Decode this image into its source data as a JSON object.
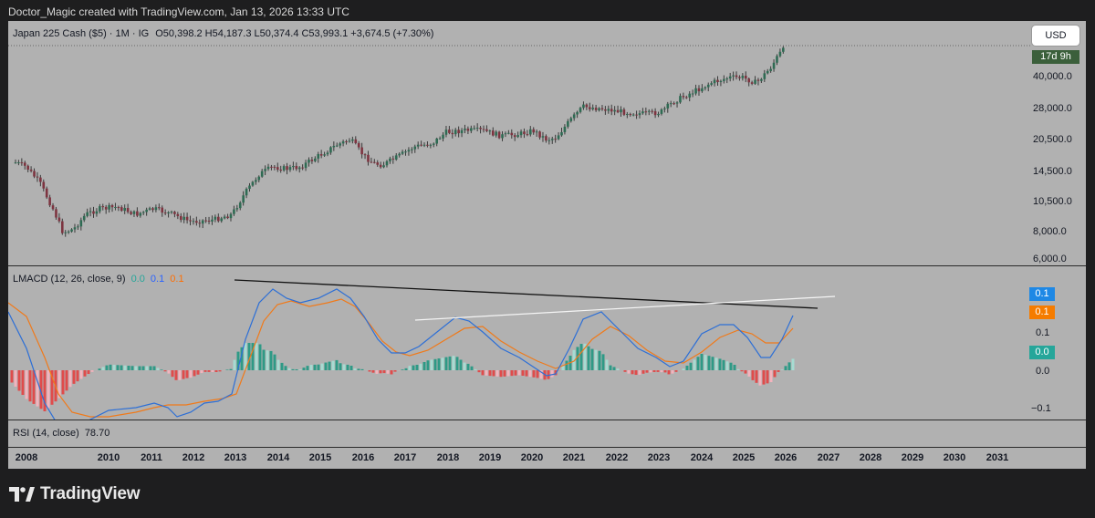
{
  "header": {
    "credit": "Doctor_Magic created with TradingView.com, Jan 13, 2026 13:33 UTC"
  },
  "main_pane": {
    "title": "Japan 225 Cash ($5) · 1M · IG",
    "ohlc": "O50,398.2 H54,187.3 L50,374.4 C53,993.1 +3,674.5 (+7.30%)",
    "currency_button": "USD",
    "countdown": "17d 9h",
    "price_labels": [
      "40,000.0",
      "28,000.0",
      "20,500.0",
      "14,500.0",
      "10,500.0",
      "8,000.0",
      "6,000.0"
    ]
  },
  "lmacd_pane": {
    "label": "LMACD (12, 26, close, 9)",
    "values": [
      "0.0",
      "0.1",
      "0.1"
    ],
    "tags": [
      "0.1",
      "0.1",
      "0.0"
    ],
    "axis": [
      "0.1",
      "0.0",
      "−0.1"
    ]
  },
  "rsi_pane": {
    "label": "RSI (14, close)",
    "value": "78.70"
  },
  "time_axis": [
    "2008",
    "2010",
    "2011",
    "2012",
    "2013",
    "2014",
    "2015",
    "2016",
    "2017",
    "2018",
    "2019",
    "2020",
    "2021",
    "2022",
    "2023",
    "2024",
    "2025",
    "2026",
    "2027",
    "2028",
    "2029",
    "2030",
    "2031"
  ],
  "brand": {
    "name": "TradingView"
  },
  "colors": {
    "up": "#26a69a",
    "down": "#ef5350",
    "macd": "#2962ff",
    "signal": "#ff6d00",
    "bg": "#b1b1b1"
  }
}
